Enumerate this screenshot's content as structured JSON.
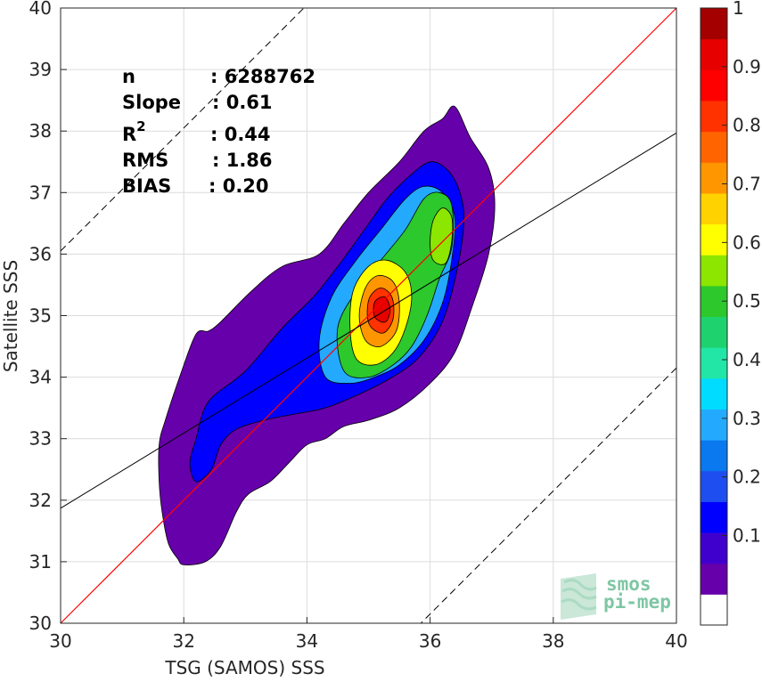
{
  "chart_data": {
    "type": "heatmap",
    "xlabel": "TSG (SAMOS) SSS",
    "ylabel": "Satellite SSS",
    "xlim": [
      30,
      40
    ],
    "ylim": [
      30,
      40
    ],
    "x_ticks": [
      30,
      32,
      34,
      36,
      38,
      40
    ],
    "y_ticks": [
      30,
      31,
      32,
      33,
      34,
      35,
      36,
      37,
      38,
      39,
      40
    ],
    "grid": true,
    "stats": {
      "n_label": "n",
      "n_value": ": 6288762",
      "slope_label": "Slope",
      "slope_value": ": 0.61",
      "r2_label": "R",
      "r2_sup": "2",
      "r2_value": ": 0.44",
      "rms_label": "RMS",
      "rms_value": ": 1.86",
      "bias_label": "BIAS",
      "bias_value": ": 0.20"
    },
    "lines": {
      "identity": {
        "from": [
          30,
          30
        ],
        "to": [
          40,
          40
        ],
        "color": "#ff0000"
      },
      "regression": {
        "slope": 0.61,
        "intercept": 13.57,
        "color": "#000000"
      },
      "upper_dashed": {
        "slope": 1,
        "intercept": 6.05,
        "color": "#000000"
      },
      "lower_dashed": {
        "slope": 1,
        "intercept": -5.85,
        "color": "#000000"
      }
    },
    "density_peak": {
      "x": 35.25,
      "y": 35.1
    },
    "secondary_peak": {
      "x": 36.2,
      "y": 36.3
    },
    "density_contours": [
      {
        "level": 0.05,
        "points": [
          [
            32.0,
            30.95
          ],
          [
            32.35,
            31.0
          ],
          [
            32.6,
            31.25
          ],
          [
            32.85,
            31.8
          ],
          [
            33.05,
            32.1
          ],
          [
            33.4,
            32.3
          ],
          [
            33.7,
            32.6
          ],
          [
            34.0,
            32.9
          ],
          [
            34.3,
            33.0
          ],
          [
            34.6,
            33.2
          ],
          [
            35.0,
            33.3
          ],
          [
            35.5,
            33.5
          ],
          [
            36.0,
            33.9
          ],
          [
            36.4,
            34.4
          ],
          [
            36.7,
            35.2
          ],
          [
            36.95,
            36.0
          ],
          [
            37.05,
            36.8
          ],
          [
            36.95,
            37.4
          ],
          [
            36.65,
            37.9
          ],
          [
            36.4,
            38.4
          ],
          [
            36.2,
            38.2
          ],
          [
            35.9,
            38.0
          ],
          [
            35.5,
            37.5
          ],
          [
            35.0,
            37.0
          ],
          [
            34.6,
            36.5
          ],
          [
            34.2,
            36.0
          ],
          [
            33.6,
            35.8
          ],
          [
            33.1,
            35.4
          ],
          [
            32.6,
            34.9
          ],
          [
            32.4,
            34.75
          ],
          [
            32.2,
            34.7
          ],
          [
            31.95,
            34.05
          ],
          [
            31.7,
            33.3
          ],
          [
            31.6,
            32.9
          ],
          [
            31.6,
            32.3
          ],
          [
            31.65,
            31.8
          ],
          [
            31.75,
            31.3
          ],
          [
            31.9,
            31.05
          ]
        ]
      },
      {
        "level": 0.15,
        "points": [
          [
            32.2,
            32.3
          ],
          [
            32.45,
            32.5
          ],
          [
            32.6,
            32.9
          ],
          [
            32.85,
            33.15
          ],
          [
            33.3,
            33.3
          ],
          [
            33.8,
            33.4
          ],
          [
            34.3,
            33.5
          ],
          [
            34.8,
            33.7
          ],
          [
            35.3,
            33.95
          ],
          [
            35.8,
            34.3
          ],
          [
            36.2,
            34.9
          ],
          [
            36.45,
            35.8
          ],
          [
            36.55,
            36.6
          ],
          [
            36.45,
            37.1
          ],
          [
            36.25,
            37.4
          ],
          [
            36.0,
            37.5
          ],
          [
            35.7,
            37.3
          ],
          [
            35.3,
            36.9
          ],
          [
            34.9,
            36.35
          ],
          [
            34.5,
            35.8
          ],
          [
            34.1,
            35.3
          ],
          [
            33.6,
            34.8
          ],
          [
            33.0,
            34.1
          ],
          [
            32.4,
            33.6
          ],
          [
            32.2,
            33.0
          ],
          [
            32.1,
            32.6
          ]
        ]
      },
      {
        "level": 0.3,
        "points": [
          [
            34.3,
            34.0
          ],
          [
            34.7,
            33.9
          ],
          [
            35.1,
            34.0
          ],
          [
            35.5,
            34.2
          ],
          [
            35.9,
            34.6
          ],
          [
            36.2,
            35.2
          ],
          [
            36.35,
            35.9
          ],
          [
            36.4,
            36.6
          ],
          [
            36.2,
            37.0
          ],
          [
            35.9,
            37.1
          ],
          [
            35.6,
            36.9
          ],
          [
            35.2,
            36.4
          ],
          [
            34.8,
            35.9
          ],
          [
            34.4,
            35.3
          ],
          [
            34.2,
            34.6
          ]
        ]
      },
      {
        "level": 0.5,
        "points": [
          [
            34.6,
            34.1
          ],
          [
            35.0,
            34.0
          ],
          [
            35.4,
            34.2
          ],
          [
            35.7,
            34.5
          ],
          [
            35.95,
            35.0
          ],
          [
            36.15,
            35.6
          ],
          [
            36.35,
            36.1
          ],
          [
            36.35,
            36.8
          ],
          [
            36.15,
            37.0
          ],
          [
            35.9,
            36.9
          ],
          [
            35.6,
            36.4
          ],
          [
            35.2,
            35.9
          ],
          [
            34.8,
            35.4
          ],
          [
            34.5,
            34.8
          ]
        ]
      },
      {
        "level": 0.6,
        "points": [
          [
            34.8,
            34.3
          ],
          [
            35.1,
            34.2
          ],
          [
            35.4,
            34.4
          ],
          [
            35.6,
            34.8
          ],
          [
            35.7,
            35.3
          ],
          [
            35.6,
            35.7
          ],
          [
            35.3,
            35.9
          ],
          [
            35.0,
            35.8
          ],
          [
            34.75,
            35.4
          ],
          [
            34.7,
            34.8
          ]
        ]
      },
      {
        "level": 0.7,
        "points": [
          [
            34.95,
            34.6
          ],
          [
            35.2,
            34.5
          ],
          [
            35.45,
            34.75
          ],
          [
            35.5,
            35.2
          ],
          [
            35.4,
            35.55
          ],
          [
            35.15,
            35.65
          ],
          [
            34.95,
            35.45
          ],
          [
            34.85,
            35.0
          ]
        ]
      },
      {
        "level": 0.8,
        "points": [
          [
            35.05,
            34.8
          ],
          [
            35.25,
            34.72
          ],
          [
            35.4,
            34.95
          ],
          [
            35.38,
            35.3
          ],
          [
            35.2,
            35.45
          ],
          [
            35.02,
            35.3
          ],
          [
            34.98,
            35.0
          ]
        ]
      },
      {
        "level": 0.9,
        "points": [
          [
            35.12,
            34.95
          ],
          [
            35.28,
            34.9
          ],
          [
            35.35,
            35.1
          ],
          [
            35.27,
            35.3
          ],
          [
            35.12,
            35.25
          ],
          [
            35.08,
            35.1
          ]
        ]
      },
      {
        "level": 0.55,
        "points": [
          [
            36.05,
            35.9
          ],
          [
            36.25,
            35.85
          ],
          [
            36.35,
            36.2
          ],
          [
            36.35,
            36.6
          ],
          [
            36.2,
            36.75
          ],
          [
            36.05,
            36.55
          ],
          [
            36.0,
            36.2
          ]
        ]
      }
    ],
    "colorbar": {
      "ticks": [
        "0.1",
        "0.2",
        "0.3",
        "0.4",
        "0.5",
        "0.6",
        "0.7",
        "0.8",
        "0.9",
        "1"
      ],
      "colors": [
        "#ffffff",
        "#6600aa",
        "#3f00ce",
        "#0000ff",
        "#1e4ef0",
        "#0a78ee",
        "#23aaff",
        "#00dcff",
        "#22e6a6",
        "#1ed26e",
        "#2cc82c",
        "#8ce600",
        "#ffff00",
        "#ffd200",
        "#ff9600",
        "#ff6400",
        "#ff3200",
        "#ff0000",
        "#e60000",
        "#a50000"
      ]
    }
  },
  "logo": {
    "line1": "smos",
    "line2": "pi-mep"
  }
}
